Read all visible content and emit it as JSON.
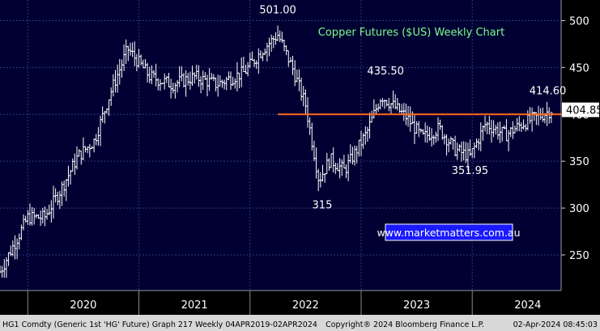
{
  "chart_data": {
    "type": "bar",
    "subtype": "ohlc",
    "title": "Copper Futures ($US) Weekly Chart",
    "watermark": "www.marketmatters.com.au",
    "xlabel": "",
    "ylabel": "",
    "ylim": [
      212,
      522
    ],
    "xlim": [
      2019.25,
      2024.3
    ],
    "y_ticks": [
      250,
      300,
      350,
      400,
      450,
      500
    ],
    "x_tick_labels": [
      {
        "label": "2020",
        "x": 2020.0
      },
      {
        "label": "2021",
        "x": 2021.0
      },
      {
        "label": "2022",
        "x": 2022.0
      },
      {
        "label": "2023",
        "x": 2023.0
      },
      {
        "label": "2024",
        "x": 2024.0
      }
    ],
    "year_dividers": [
      2019.5,
      2020.5,
      2021.5,
      2022.5,
      2023.5
    ],
    "grid": true,
    "legend": "none",
    "background_color": "#000033",
    "bar_color": "#ffffff",
    "annotation_color": "#ffffff",
    "title_color": "#7CFC8A",
    "horizontal_line": {
      "value": 400,
      "color": "#ff6a1a",
      "start_x": 2021.75
    },
    "last_value": {
      "label": "404.85",
      "value": 404.85
    },
    "annotations": [
      {
        "text": "501.00",
        "x": 2021.75,
        "value": 501.0,
        "position": "above"
      },
      {
        "text": "435.50",
        "x": 2022.72,
        "value": 435.5,
        "position": "above"
      },
      {
        "text": "414.60",
        "x": 2024.18,
        "value": 414.6,
        "position": "above"
      },
      {
        "text": "315",
        "x": 2022.15,
        "value": 315.0,
        "position": "below"
      },
      {
        "text": "351.95",
        "x": 2023.48,
        "value": 351.95,
        "position": "below"
      }
    ],
    "series_anchor_points": [
      {
        "x": 2019.25,
        "value": 232
      },
      {
        "x": 2019.5,
        "value": 290
      },
      {
        "x": 2019.65,
        "value": 290
      },
      {
        "x": 2019.8,
        "value": 320
      },
      {
        "x": 2019.95,
        "value": 355
      },
      {
        "x": 2020.1,
        "value": 372
      },
      {
        "x": 2020.25,
        "value": 425
      },
      {
        "x": 2020.4,
        "value": 470
      },
      {
        "x": 2020.6,
        "value": 440
      },
      {
        "x": 2020.8,
        "value": 432
      },
      {
        "x": 2021.0,
        "value": 440
      },
      {
        "x": 2021.2,
        "value": 432
      },
      {
        "x": 2021.45,
        "value": 445
      },
      {
        "x": 2021.62,
        "value": 470
      },
      {
        "x": 2021.75,
        "value": 485
      },
      {
        "x": 2021.88,
        "value": 450
      },
      {
        "x": 2022.0,
        "value": 410
      },
      {
        "x": 2022.12,
        "value": 330
      },
      {
        "x": 2022.22,
        "value": 352
      },
      {
        "x": 2022.35,
        "value": 340
      },
      {
        "x": 2022.45,
        "value": 360
      },
      {
        "x": 2022.55,
        "value": 380
      },
      {
        "x": 2022.68,
        "value": 420
      },
      {
        "x": 2022.9,
        "value": 398
      },
      {
        "x": 2023.05,
        "value": 375
      },
      {
        "x": 2023.2,
        "value": 385
      },
      {
        "x": 2023.35,
        "value": 362
      },
      {
        "x": 2023.48,
        "value": 355
      },
      {
        "x": 2023.62,
        "value": 390
      },
      {
        "x": 2023.8,
        "value": 378
      },
      {
        "x": 2023.95,
        "value": 390
      },
      {
        "x": 2024.1,
        "value": 398
      },
      {
        "x": 2024.22,
        "value": 405
      }
    ],
    "footer": {
      "left": "HG1 Comdty (Generic 1st 'HG' Future) Graph 217  Weekly 04APR2019-02APR2024",
      "center": "Copyright® 2024 Bloomberg Finance L.P.",
      "right": "02-Apr-2024 08:45:03"
    }
  }
}
